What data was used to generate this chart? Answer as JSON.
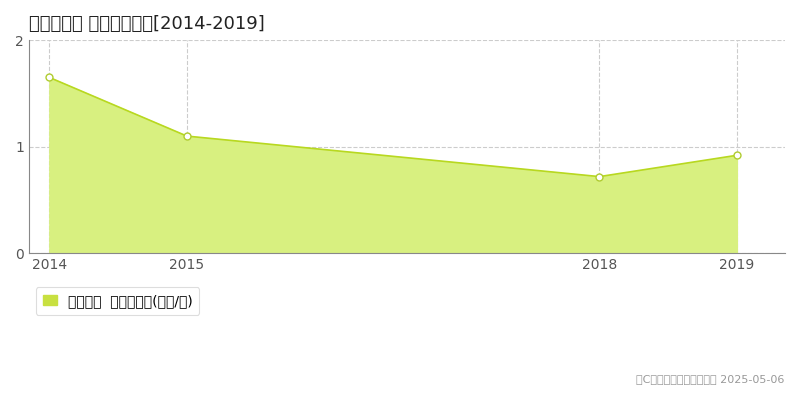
{
  "title": "名張市矢川 土地価格推移[2014-2019]",
  "years": [
    2014,
    2015,
    2018,
    2019
  ],
  "values": [
    1.65,
    1.1,
    0.72,
    0.92
  ],
  "line_color": "#b8d820",
  "fill_color": "#d8f080",
  "marker_facecolor": "#ffffff",
  "marker_edgecolor": "#b0cc30",
  "ylim": [
    0,
    2
  ],
  "yticks": [
    0,
    1,
    2
  ],
  "xlim": [
    2013.85,
    2019.35
  ],
  "xtick_years": [
    2014,
    2015,
    2018,
    2019
  ],
  "grid_color": "#cccccc",
  "bg_color": "#ffffff",
  "plot_bg_color": "#ffffff",
  "legend_label": "土地価格  平均坪単価(万円/坪)",
  "legend_square_color": "#c8e040",
  "copyright_text": "（C）土地価格ドットコム 2025-05-06",
  "title_fontsize": 13,
  "axis_fontsize": 10,
  "legend_fontsize": 10
}
